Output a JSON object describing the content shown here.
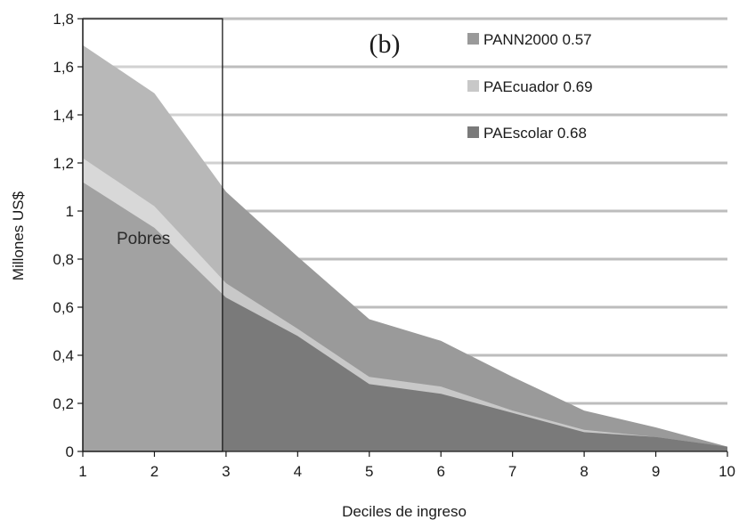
{
  "chart_data": {
    "type": "area",
    "panel_label": "(b)",
    "xlabel": "Deciles de ingreso",
    "ylabel": "Millones US$",
    "x": [
      1,
      2,
      3,
      4,
      5,
      6,
      7,
      8,
      9,
      10
    ],
    "x_ticks": [
      "1",
      "2",
      "3",
      "4",
      "5",
      "6",
      "7",
      "8",
      "9",
      "10"
    ],
    "xlim": [
      1,
      10
    ],
    "ylim": [
      0,
      1.8
    ],
    "y_ticks": [
      0,
      0.2,
      0.4,
      0.6,
      0.8,
      1.0,
      1.2,
      1.4,
      1.6,
      1.8
    ],
    "y_tick_labels": [
      "0",
      "0,2",
      "0,4",
      "0,6",
      "0,8",
      "1",
      "1,2",
      "1,4",
      "1,6",
      "1,8"
    ],
    "grid": "horizontal",
    "legend_position": "top-right",
    "series": [
      {
        "name": "PANN2000 0.57",
        "color": "#9a9a9a",
        "values": [
          1.69,
          1.49,
          1.08,
          0.81,
          0.55,
          0.46,
          0.31,
          0.17,
          0.1,
          0.02
        ]
      },
      {
        "name": "PAEcuador 0.69",
        "color": "#c8c8c8",
        "values": [
          1.22,
          1.02,
          0.7,
          0.51,
          0.31,
          0.27,
          0.17,
          0.09,
          0.06,
          0.02
        ]
      },
      {
        "name": "PAEscolar 0.68",
        "color": "#7a7a7a",
        "values": [
          1.12,
          0.93,
          0.64,
          0.48,
          0.28,
          0.24,
          0.16,
          0.08,
          0.06,
          0.02
        ]
      }
    ],
    "highlight_region": {
      "label": "Pobres",
      "x_range": [
        1,
        2.95
      ]
    }
  }
}
